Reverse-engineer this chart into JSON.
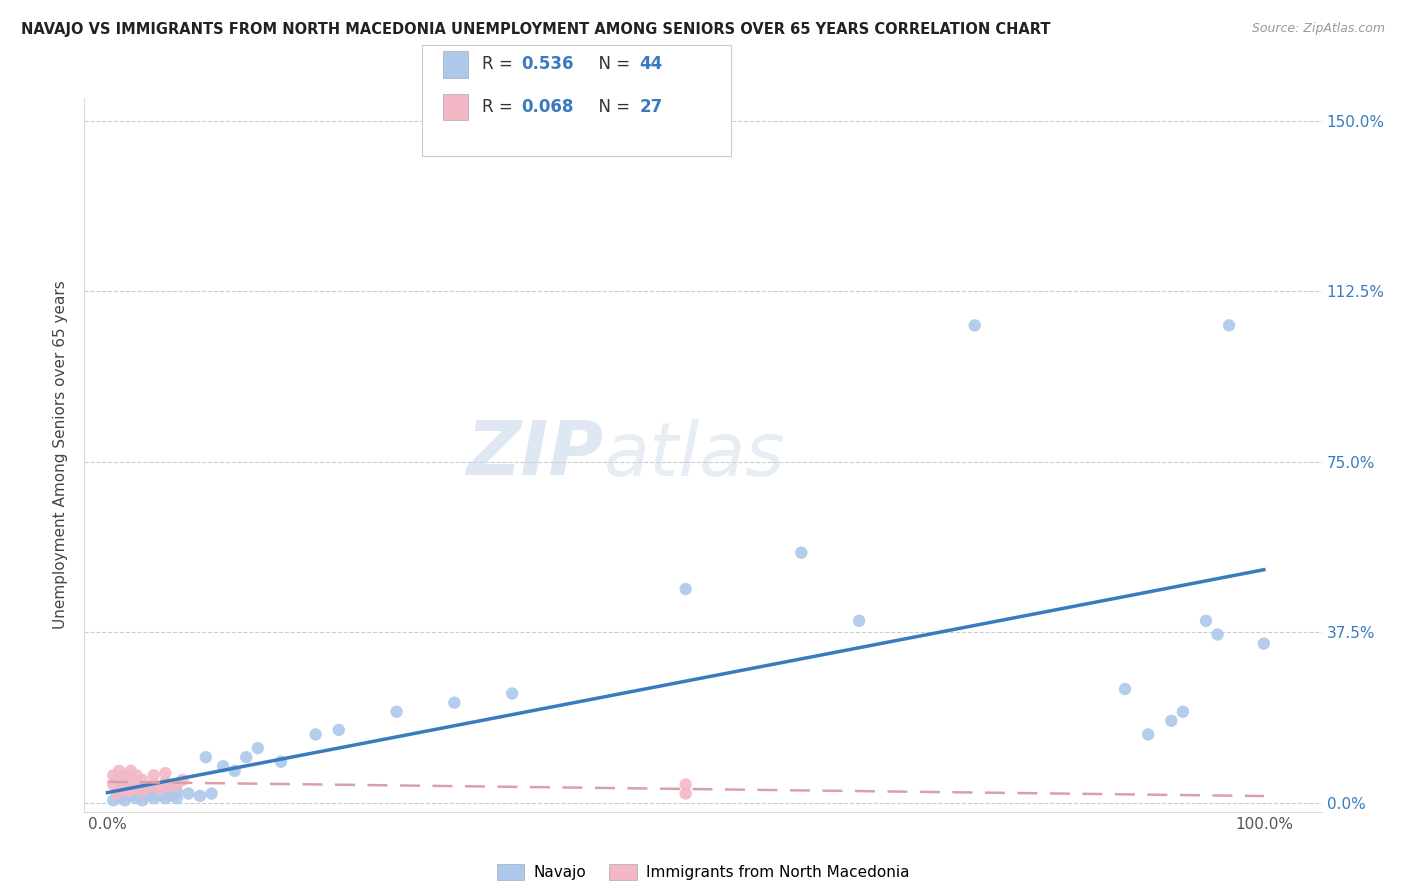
{
  "title": "NAVAJO VS IMMIGRANTS FROM NORTH MACEDONIA UNEMPLOYMENT AMONG SENIORS OVER 65 YEARS CORRELATION CHART",
  "source": "Source: ZipAtlas.com",
  "ylabel": "Unemployment Among Seniors over 65 years",
  "watermark_part1": "ZIP",
  "watermark_part2": "atlas",
  "navajo_R": 0.536,
  "navajo_N": 44,
  "immig_R": 0.068,
  "immig_N": 27,
  "xlim": [
    -0.02,
    1.05
  ],
  "ylim": [
    -0.02,
    1.55
  ],
  "xticks": [
    0.0,
    0.25,
    0.5,
    0.75,
    1.0
  ],
  "xtick_labels": [
    "0.0%",
    "",
    "",
    "",
    "100.0%"
  ],
  "yticks": [
    0.0,
    0.375,
    0.75,
    1.125,
    1.5
  ],
  "ytick_labels": [
    "0.0%",
    "37.5%",
    "75.0%",
    "112.5%",
    "150.0%"
  ],
  "navajo_color": "#adc8ea",
  "immig_color": "#f2b8c6",
  "navajo_line_color": "#3a7bbf",
  "immig_line_color": "#d9a0aa",
  "navajo_x": [
    0.005,
    0.01,
    0.01,
    0.015,
    0.02,
    0.02,
    0.025,
    0.03,
    0.03,
    0.035,
    0.04,
    0.04,
    0.045,
    0.05,
    0.05,
    0.055,
    0.06,
    0.06,
    0.07,
    0.08,
    0.085,
    0.09,
    0.1,
    0.11,
    0.12,
    0.13,
    0.15,
    0.18,
    0.2,
    0.25,
    0.3,
    0.35,
    0.5,
    0.6,
    0.65,
    0.75,
    0.88,
    0.9,
    0.92,
    0.93,
    0.95,
    0.96,
    0.97,
    1.0
  ],
  "navajo_y": [
    0.005,
    0.01,
    0.02,
    0.005,
    0.015,
    0.025,
    0.01,
    0.005,
    0.02,
    0.015,
    0.01,
    0.02,
    0.015,
    0.01,
    0.02,
    0.015,
    0.01,
    0.025,
    0.02,
    0.015,
    0.1,
    0.02,
    0.08,
    0.07,
    0.1,
    0.12,
    0.09,
    0.15,
    0.16,
    0.2,
    0.22,
    0.24,
    0.47,
    0.55,
    0.4,
    1.05,
    0.25,
    0.15,
    0.18,
    0.2,
    0.4,
    0.37,
    1.05,
    0.35
  ],
  "immig_x": [
    0.005,
    0.005,
    0.008,
    0.01,
    0.01,
    0.012,
    0.015,
    0.015,
    0.018,
    0.02,
    0.02,
    0.022,
    0.025,
    0.025,
    0.03,
    0.03,
    0.035,
    0.04,
    0.04,
    0.045,
    0.05,
    0.05,
    0.055,
    0.06,
    0.065,
    0.5,
    0.5
  ],
  "immig_y": [
    0.04,
    0.06,
    0.02,
    0.05,
    0.07,
    0.03,
    0.04,
    0.06,
    0.025,
    0.05,
    0.07,
    0.03,
    0.04,
    0.06,
    0.025,
    0.05,
    0.035,
    0.04,
    0.06,
    0.03,
    0.045,
    0.065,
    0.035,
    0.04,
    0.05,
    0.02,
    0.04
  ],
  "marker_size": 80
}
